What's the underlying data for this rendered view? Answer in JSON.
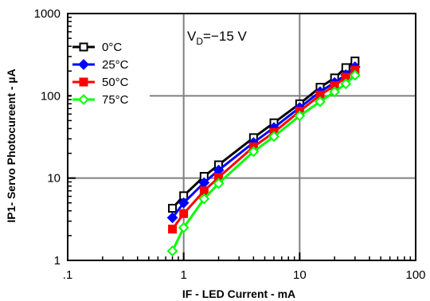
{
  "chart_data": {
    "type": "line",
    "title": "",
    "xlabel": "IF - LED Current - mA",
    "ylabel": "IP1- Servo  Photocureent - µA",
    "x_scale": "log",
    "y_scale": "log",
    "xlim": [
      0.1,
      100
    ],
    "ylim": [
      1,
      1000
    ],
    "x_ticks": [
      0.1,
      1,
      10,
      100
    ],
    "x_tick_labels": [
      ".1",
      "1",
      "10",
      "100"
    ],
    "y_ticks": [
      1,
      10,
      100,
      1000
    ],
    "y_tick_labels": [
      "1",
      "10",
      "100",
      "1000"
    ],
    "grid": true,
    "legend_position": "top-left",
    "annotation": {
      "main": "V",
      "sub": "D",
      "rest": "=−15 V"
    },
    "x": [
      0.8,
      1,
      1.5,
      2,
      4,
      6,
      10,
      15,
      20,
      25,
      30
    ],
    "series": [
      {
        "name": "0°C",
        "color": "#000000",
        "marker": "square-open",
        "values": [
          4.3,
          6.1,
          10.5,
          14.5,
          31,
          47,
          80,
          127,
          165,
          220,
          265
        ]
      },
      {
        "name": "25°C",
        "color": "#0000ff",
        "marker": "diamond-filled",
        "values": [
          3.3,
          5.0,
          8.8,
          12.5,
          27,
          41,
          72,
          112,
          145,
          180,
          225
        ]
      },
      {
        "name": "50°C",
        "color": "#ff0000",
        "marker": "square-filled",
        "values": [
          2.4,
          3.7,
          7.0,
          10.2,
          24,
          36,
          65,
          102,
          133,
          168,
          205
        ]
      },
      {
        "name": "75°C",
        "color": "#00ff00",
        "marker": "diamond-open",
        "values": [
          1.3,
          2.5,
          5.6,
          8.6,
          21,
          32,
          57,
          85,
          112,
          140,
          178
        ]
      }
    ]
  }
}
